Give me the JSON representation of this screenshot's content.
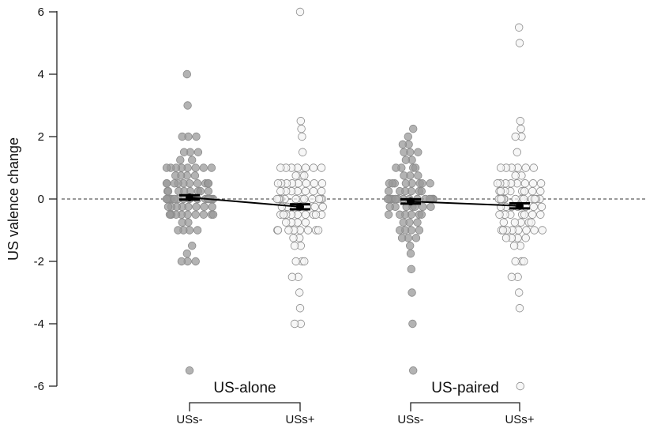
{
  "chart_data": {
    "type": "scatter",
    "ylabel": "US valence change",
    "ylim": [
      -6,
      6
    ],
    "yticks": [
      "6",
      "4",
      "2",
      "0",
      "-2",
      "-4",
      "-6"
    ],
    "yticks_values": [
      6,
      4,
      2,
      0,
      -2,
      -4,
      -6
    ],
    "reference_line": 0,
    "groups": [
      {
        "label": "US-alone",
        "conditions": [
          "USs-",
          "USs+"
        ]
      },
      {
        "label": "US-paired",
        "conditions": [
          "USs-",
          "USs+"
        ]
      }
    ],
    "conditions": [
      "USs-",
      "USs+",
      "USs-",
      "USs+"
    ],
    "series": [
      {
        "group": "US-alone",
        "condition": "USs-",
        "fill": "#9a9a9a",
        "mean": 0.05,
        "se": 0.07,
        "values": [
          4,
          3,
          2,
          2,
          2,
          1.5,
          1.5,
          1.5,
          1.25,
          1.25,
          1,
          1,
          1,
          1,
          1,
          1,
          1,
          1,
          0.75,
          0.75,
          0.75,
          0.75,
          0.5,
          0.5,
          0.5,
          0.5,
          0.5,
          0.5,
          0.5,
          0.5,
          0.5,
          0.5,
          0.25,
          0.25,
          0.25,
          0.25,
          0.25,
          0.25,
          0.25,
          0.25,
          0,
          0,
          0,
          0,
          0,
          0,
          0,
          0,
          0,
          0,
          0,
          0,
          0,
          0,
          0,
          0,
          -0.25,
          -0.25,
          -0.25,
          -0.25,
          -0.25,
          -0.25,
          -0.25,
          -0.25,
          -0.5,
          -0.5,
          -0.5,
          -0.5,
          -0.5,
          -0.5,
          -0.5,
          -0.5,
          -0.5,
          -0.5,
          -0.75,
          -0.75,
          -1,
          -1,
          -1,
          -1,
          -1.5,
          -1.75,
          -2,
          -2,
          -2,
          -5.5
        ]
      },
      {
        "group": "US-alone",
        "condition": "USs+",
        "fill": "#f4f4f4",
        "mean": -0.25,
        "se": 0.08,
        "values": [
          6,
          2.5,
          2.25,
          2,
          1.5,
          1,
          1,
          1,
          1,
          1,
          1,
          1,
          0.75,
          0.75,
          0.75,
          0.5,
          0.5,
          0.5,
          0.5,
          0.5,
          0.5,
          0.5,
          0.5,
          0.25,
          0.25,
          0.25,
          0.25,
          0.25,
          0.25,
          0.25,
          0,
          0,
          0,
          0,
          0,
          0,
          0,
          0,
          0,
          0,
          0,
          0,
          0,
          -0.25,
          -0.25,
          -0.25,
          -0.25,
          -0.25,
          -0.25,
          -0.25,
          -0.5,
          -0.5,
          -0.5,
          -0.5,
          -0.5,
          -0.5,
          -0.5,
          -0.5,
          -0.5,
          -0.75,
          -0.75,
          -0.75,
          -0.75,
          -1,
          -1,
          -1,
          -1,
          -1,
          -1,
          -1,
          -1,
          -1.25,
          -1.25,
          -1.5,
          -1.5,
          -2,
          -2,
          -2,
          -2.5,
          -2.5,
          -3,
          -3.5,
          -4,
          -4
        ]
      },
      {
        "group": "US-paired",
        "condition": "USs-",
        "fill": "#9a9a9a",
        "mean": -0.08,
        "se": 0.07,
        "values": [
          2.25,
          2,
          1.75,
          1.75,
          1.5,
          1.5,
          1.5,
          1.25,
          1.25,
          1,
          1,
          1,
          1,
          0.75,
          0.75,
          0.75,
          0.5,
          0.5,
          0.5,
          0.5,
          0.5,
          0.5,
          0.5,
          0.5,
          0.25,
          0.25,
          0.25,
          0.25,
          0.25,
          0.25,
          0,
          0,
          0,
          0,
          0,
          0,
          0,
          0,
          0,
          0,
          0,
          0,
          0,
          0,
          -0.25,
          -0.25,
          -0.25,
          -0.25,
          -0.25,
          -0.25,
          -0.25,
          -0.5,
          -0.5,
          -0.5,
          -0.5,
          -0.5,
          -0.5,
          -0.75,
          -0.75,
          -0.75,
          -1,
          -1,
          -1,
          -1,
          -1.25,
          -1.25,
          -1.25,
          -1.5,
          -1.75,
          -2.25,
          -3,
          -4,
          -5.5
        ]
      },
      {
        "group": "US-paired",
        "condition": "USs+",
        "fill": "#f4f4f4",
        "mean": -0.22,
        "se": 0.08,
        "values": [
          5.5,
          5,
          2.5,
          2.25,
          2,
          2,
          1.5,
          1,
          1,
          1,
          1,
          1,
          1,
          0.75,
          0.75,
          0.5,
          0.5,
          0.5,
          0.5,
          0.5,
          0.5,
          0.5,
          0.5,
          0.25,
          0.25,
          0.25,
          0.25,
          0.25,
          0.25,
          0.25,
          0.25,
          0,
          0,
          0,
          0,
          0,
          0,
          0,
          0,
          0,
          0,
          0,
          0,
          -0.25,
          -0.25,
          -0.25,
          -0.25,
          -0.25,
          -0.25,
          -0.25,
          -0.5,
          -0.5,
          -0.5,
          -0.5,
          -0.5,
          -0.5,
          -0.5,
          -0.75,
          -0.75,
          -0.75,
          -0.75,
          -0.75,
          -1,
          -1,
          -1,
          -1,
          -1,
          -1,
          -1,
          -1,
          -1.25,
          -1.25,
          -1.25,
          -1.25,
          -1.5,
          -1.5,
          -2,
          -2,
          -2,
          -2.5,
          -2.5,
          -3,
          -3.5,
          -6
        ]
      }
    ],
    "mean_lines": [
      [
        "US-alone USs-",
        "US-alone USs+"
      ],
      [
        "US-paired USs-",
        "US-paired USs+"
      ]
    ]
  }
}
